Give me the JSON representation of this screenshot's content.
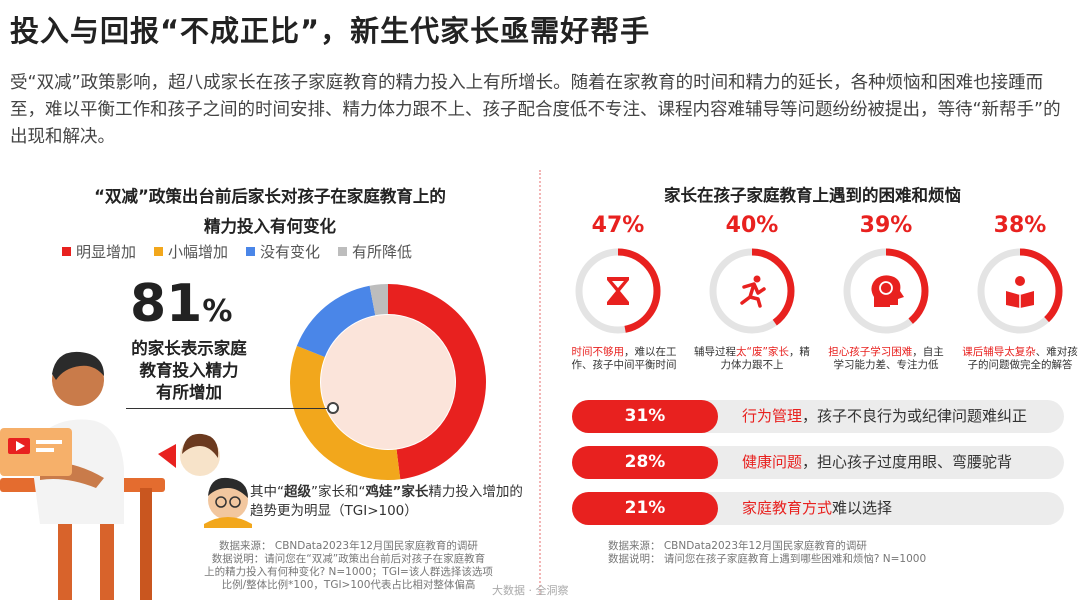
{
  "header": {
    "title": "投入与回报“不成正比”，新生代家长亟需好帮手",
    "intro": "受“双减”政策影响，超八成家长在孩子家庭教育的精力投入上有所增长。随着在家教育的时间和精力的延长，各种烦恼和困难也接踵而至，难以平衡工作和孩子之间的时间安排、精力体力跟不上、孩子配合度低不专注、课程内容难辅导等问题纷纷被提出，等待“新帮手”的出现和解决。"
  },
  "left": {
    "title_line1": "“双减”政策出台前后家长对孩子在家庭教育上的",
    "title_line2": "精力投入有何变化",
    "big_number": "81",
    "big_number_unit": "%",
    "caption_line1": "的家长表示家庭",
    "caption_line2": "教育投入精力",
    "caption_line3": "有所增加",
    "note_prefix": "其中“",
    "note_term1": "超级",
    "note_mid1": "”家长和“",
    "note_term2": "鸡娃",
    "note_mid2": "”家长",
    "note_rest": "精力投入增加的趋势更为明显（TGI>100）",
    "source_line1": "数据来源：  CBNData2023年12月国民家庭教育的调研",
    "source_line2": "数据说明：请问您在“双减”政策出台前后对孩子在家庭教育",
    "source_line3": "上的精力投入有何种变化? N=1000；TGI=该人群选择该选项",
    "source_line4": "比例/整体比例*100，TGI>100代表占比相对整体偏高"
  },
  "watermark": "大数据 · 全洞察",
  "chart_data": [
    {
      "type": "pie",
      "title": "“双减”政策出台前后家长对孩子在家庭教育上的精力投入有何变化",
      "categories": [
        "明显增加",
        "小幅增加",
        "没有变化",
        "有所降低"
      ],
      "values": [
        48,
        33,
        16,
        3
      ],
      "colors": [
        "#e8211f",
        "#f2a71c",
        "#4a86e8",
        "#bdbdbd"
      ],
      "legend_position": "top",
      "annotation": "81%"
    },
    {
      "type": "bar",
      "title": "家长在孩子家庭教育上遇到的困难和烦恼",
      "categories": [
        "时间不够用",
        "辅导过程太“废”",
        "担心孩子学习困难",
        "课后辅导太复杂",
        "行为管理",
        "健康问题",
        "家庭教育方式"
      ],
      "values": [
        47,
        40,
        39,
        38,
        31,
        28,
        21
      ],
      "unit": "%"
    }
  ],
  "right": {
    "title": "家长在孩子家庭教育上遇到的困难和烦恼",
    "rings": [
      {
        "pct_label": "47%",
        "value": 47,
        "icon": "hourglass-icon",
        "desc_hl": "时间不够用",
        "desc_rest": "，难以在工作、孩子中间平衡时间"
      },
      {
        "pct_label": "40%",
        "value": 40,
        "icon": "running-person-icon",
        "desc_pre": "辅导过程",
        "desc_hl": "太“废”家长",
        "desc_rest": "，精力体力跟不上"
      },
      {
        "pct_label": "39%",
        "value": 39,
        "icon": "brain-head-icon",
        "desc_hl": "担心孩子学习困难",
        "desc_rest": "，自主学习能力差、专注力低"
      },
      {
        "pct_label": "38%",
        "value": 38,
        "icon": "reading-person-icon",
        "desc_hl": "课后辅导太复杂",
        "desc_rest": "、难对孩子的问题做完全的解答"
      }
    ],
    "bars": [
      {
        "pct_label": "31%",
        "hl": "行为管理",
        "rest": "，孩子不良行为或纪律问题难纠正"
      },
      {
        "pct_label": "28%",
        "hl": "健康问题",
        "rest": "，担心孩子过度用眼、弯腰驼背"
      },
      {
        "pct_label": "21%",
        "hl": "家庭教育方式",
        "rest": "难以选择"
      }
    ],
    "source_line1": "数据来源：  CBNData2023年12月国民家庭教育的调研",
    "source_line2": "数据说明：  请问您在孩子家庭教育上遇到哪些困难和烦恼? N=1000"
  }
}
